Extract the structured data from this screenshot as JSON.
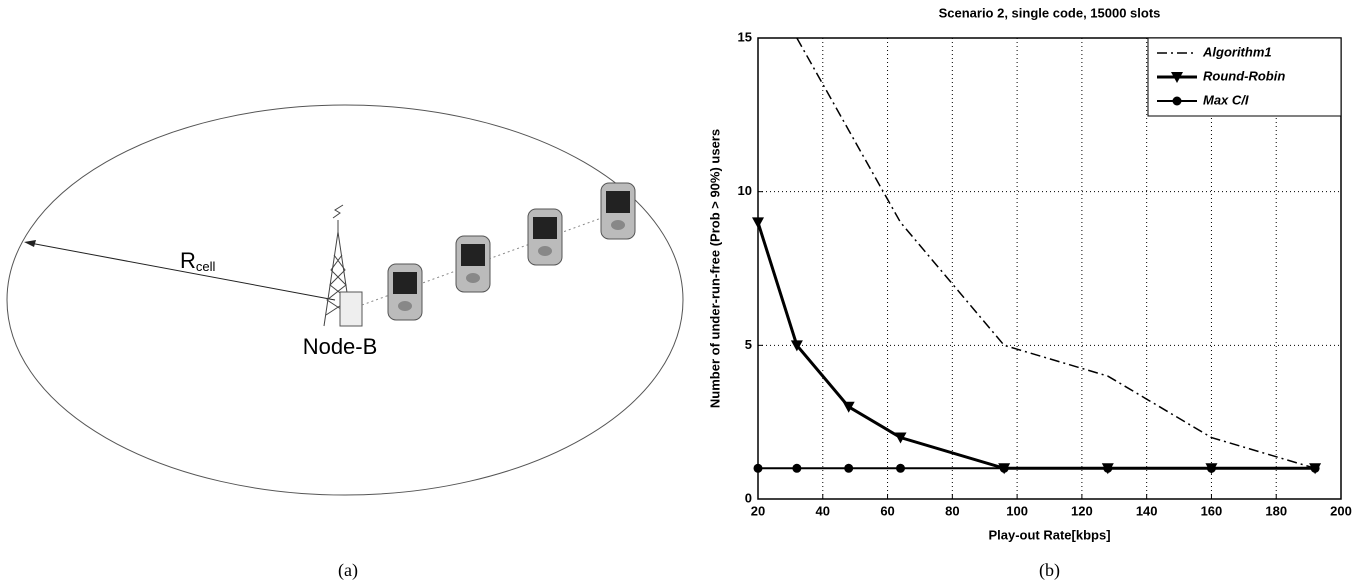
{
  "diagram": {
    "radius_label": "R",
    "radius_subscript": "cell",
    "node_label": "Node-B",
    "caption": "(a)"
  },
  "chart_data": {
    "type": "line",
    "title": "Scenario 2, single code, 15000 slots",
    "x_label": "Play-out Rate[kbps]",
    "y_label": "Number of under-run-free (Prob > 90%) users",
    "caption": "(b)",
    "x": [
      20,
      32,
      48,
      64,
      96,
      128,
      160,
      192
    ],
    "series": [
      {
        "name": "Algorithm1",
        "color": "#000000",
        "line_style": "dash-dot",
        "marker": "none",
        "values": [
          null,
          15,
          12,
          9,
          5,
          4,
          2,
          1
        ]
      },
      {
        "name": "Round-Robin",
        "color": "#000000",
        "line_style": "solid-thick",
        "marker": "triangle-down",
        "values": [
          9,
          5,
          3,
          2,
          1,
          1,
          1,
          1
        ]
      },
      {
        "name": "Max C/I",
        "color": "#000000",
        "line_style": "solid",
        "marker": "circle",
        "values": [
          1,
          1,
          1,
          1,
          1,
          1,
          1,
          1
        ]
      }
    ],
    "xlim": [
      20,
      200
    ],
    "xticks": [
      20,
      40,
      60,
      80,
      100,
      120,
      140,
      160,
      180,
      200
    ],
    "ylim": [
      0,
      15
    ],
    "yticks": [
      0,
      5,
      10,
      15
    ],
    "grid": true,
    "legend": "top-right"
  }
}
